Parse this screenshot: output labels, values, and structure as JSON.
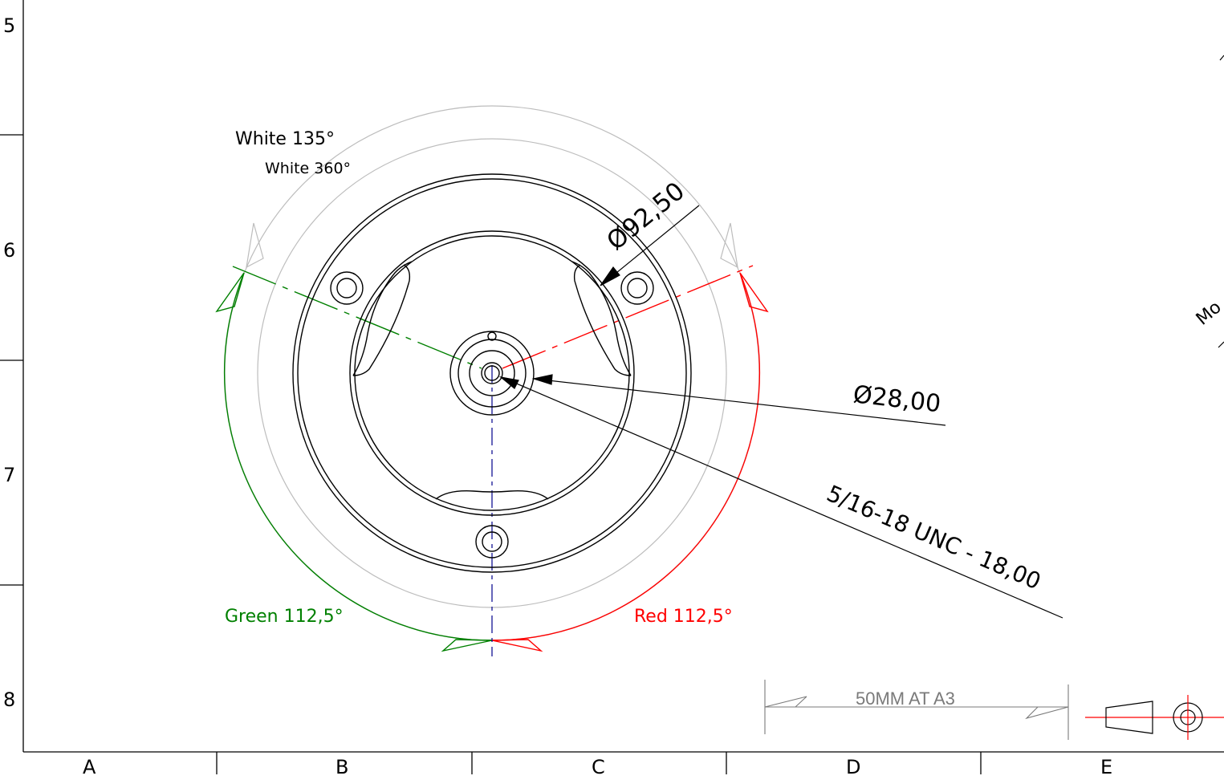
{
  "row_labels": [
    "5",
    "6",
    "7",
    "8"
  ],
  "column_labels": [
    "A",
    "B",
    "C",
    "D",
    "E"
  ],
  "annotations": {
    "white_135": "White 135°",
    "white_360": "White 360°",
    "green_label": "Green 112,5°",
    "red_label": "Red 112,5°"
  },
  "dimensions": {
    "outer_diameter": "Ø92,50",
    "hub_diameter": "Ø28,00",
    "thread_callout": "5/16-18 UNC - 18,00"
  },
  "scale_bar": {
    "label": "50MM AT A3"
  },
  "partial_text": {
    "edge_fragment": "Mo"
  },
  "colors": {
    "line": "#000000",
    "green": "#008000",
    "red": "#ff0000",
    "construction": "#bdbdbd",
    "centerline": "#00008b",
    "scale_text": "#7a7a7a"
  }
}
